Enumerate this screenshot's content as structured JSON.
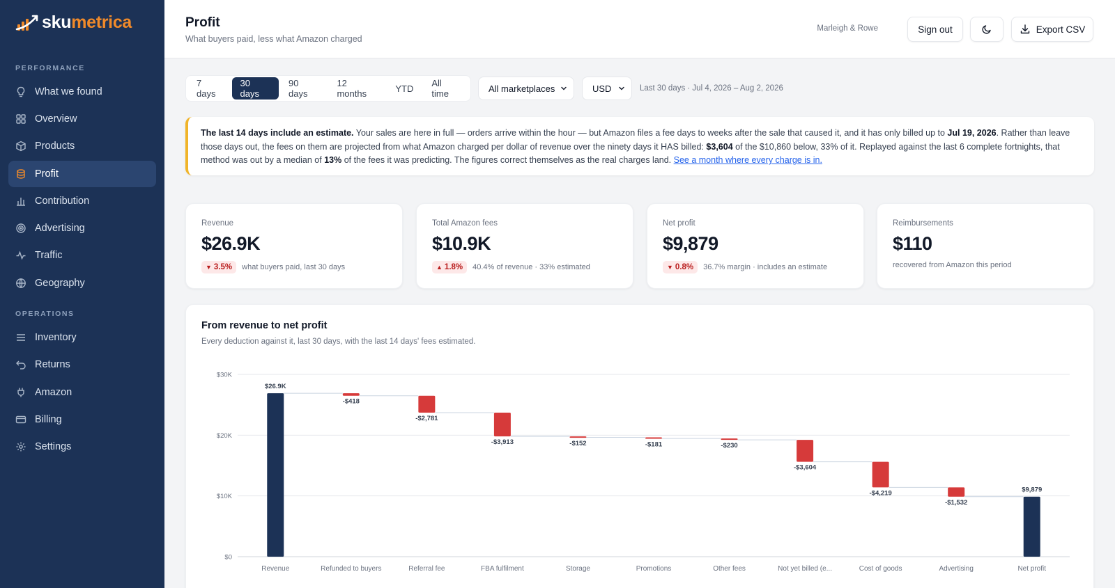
{
  "brand": {
    "name_a": "sku",
    "name_b": "metrica"
  },
  "sidebar": {
    "sections": [
      {
        "label": "PERFORMANCE"
      },
      {
        "label": "OPERATIONS"
      }
    ],
    "items": [
      {
        "label": "What we found",
        "icon": "lightbulb-icon"
      },
      {
        "label": "Overview",
        "icon": "grid-icon"
      },
      {
        "label": "Products",
        "icon": "box-icon"
      },
      {
        "label": "Profit",
        "icon": "coins-icon",
        "active": true
      },
      {
        "label": "Contribution",
        "icon": "bar-chart-icon"
      },
      {
        "label": "Advertising",
        "icon": "target-icon"
      },
      {
        "label": "Traffic",
        "icon": "activity-icon"
      },
      {
        "label": "Geography",
        "icon": "globe-icon"
      },
      {
        "label": "Inventory",
        "icon": "list-icon"
      },
      {
        "label": "Returns",
        "icon": "undo-icon"
      },
      {
        "label": "Amazon",
        "icon": "plug-icon"
      },
      {
        "label": "Billing",
        "icon": "credit-card-icon"
      },
      {
        "label": "Settings",
        "icon": "gear-icon"
      }
    ]
  },
  "header": {
    "title": "Profit",
    "subtitle": "What buyers paid, less what Amazon charged",
    "account": "Marleigh & Rowe",
    "sign_out": "Sign out",
    "export": "Export CSV"
  },
  "filters": {
    "ranges": [
      "7 days",
      "30 days",
      "90 days",
      "12 months",
      "YTD",
      "All time"
    ],
    "active_range": "30 days",
    "marketplace": "All marketplaces",
    "currency": "USD",
    "range_label": "Last 30 days · Jul 4, 2026 – Aug 2, 2026"
  },
  "banner": {
    "bold_lead": "The last 14 days include an estimate.",
    "t1": " Your sales are here in full — orders arrive within the hour — but Amazon files a fee days to weeks after the sale that caused it, and it has only billed up to ",
    "date": "Jul 19, 2026",
    "t2": ". Rather than leave those days out, the fees on them are projected from what Amazon charged per dollar of revenue over the ninety days it HAS billed: ",
    "amount": "$3,604",
    "t3": " of the $10,860 below, 33% of it. Replayed against the last 6 complete fortnights, that method was out by a median of ",
    "pct": "13%",
    "t4": " of the fees it was predicting. The figures correct themselves as the real charges land. ",
    "link": "See a month where every charge is in."
  },
  "kpis": [
    {
      "label": "Revenue",
      "value": "$26.9K",
      "delta": "3.5%",
      "direction": "down",
      "note": "what buyers paid, last 30 days"
    },
    {
      "label": "Total Amazon fees",
      "value": "$10.9K",
      "delta": "1.8%",
      "direction": "up",
      "note": "40.4% of revenue · 33% estimated"
    },
    {
      "label": "Net profit",
      "value": "$9,879",
      "delta": "0.8%",
      "direction": "down",
      "note": "36.7% margin · includes an estimate"
    },
    {
      "label": "Reimbursements",
      "value": "$110",
      "delta": "",
      "direction": "",
      "note": "recovered from Amazon this period"
    }
  ],
  "chart": {
    "title": "From revenue to net profit",
    "subtitle": "Every deduction against it, last 30 days, with the last 14 days' fees estimated."
  },
  "chart_data": {
    "type": "bar",
    "subtype": "waterfall",
    "ylim": [
      0,
      30000
    ],
    "yticks": [
      "$0",
      "$10K",
      "$20K",
      "$30K"
    ],
    "ytick_values": [
      0,
      10000,
      20000,
      30000
    ],
    "categories": [
      "Revenue",
      "Refunded to buyers",
      "Referral fee",
      "FBA fulfilment",
      "Storage",
      "Promotions",
      "Other fees",
      "Not yet billed (e...",
      "Cost of goods",
      "Advertising",
      "Net profit"
    ],
    "values": [
      26900,
      -418,
      -2781,
      -3913,
      -152,
      -181,
      -230,
      -3604,
      -4219,
      -1532,
      9879
    ],
    "labels": [
      "$26.9K",
      "-$418",
      "-$2,781",
      "-$3,913",
      "-$152",
      "-$181",
      "-$230",
      "-$3,604",
      "-$4,219",
      "-$1,532",
      "$9,879"
    ],
    "kinds": [
      "total",
      "delta",
      "delta",
      "delta",
      "delta",
      "delta",
      "delta",
      "delta",
      "delta",
      "delta",
      "total"
    ],
    "colors": {
      "total": "#1c3256",
      "negative": "#d63a3a"
    },
    "grid": true
  }
}
